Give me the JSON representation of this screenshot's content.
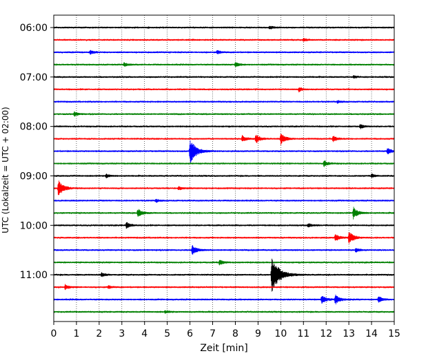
{
  "chart_data": {
    "type": "line",
    "title": "",
    "xlabel": "Zeit  [min]",
    "ylabel": "UTC (Lokalzeit = UTC + 02:00)",
    "xlim": [
      0,
      15
    ],
    "x_ticks": [
      "0",
      "1",
      "2",
      "3",
      "4",
      "5",
      "6",
      "7",
      "8",
      "9",
      "10",
      "11",
      "12",
      "13",
      "14",
      "15"
    ],
    "y_ticks": [
      "06:00",
      "07:00",
      "08:00",
      "09:00",
      "10:00",
      "11:00"
    ],
    "grid": "vertical-dotted",
    "trace_colors": [
      "#000000",
      "#ff0000",
      "#0000ff",
      "#008000"
    ],
    "traces": [
      {
        "start": "06:00",
        "events": [
          {
            "t": 9.5,
            "amp": 0.25
          }
        ]
      },
      {
        "start": "06:15",
        "events": [
          {
            "t": 11.0,
            "amp": 0.2
          }
        ]
      },
      {
        "start": "06:30",
        "events": [
          {
            "t": 1.6,
            "amp": 0.35
          },
          {
            "t": 7.2,
            "amp": 0.3
          }
        ]
      },
      {
        "start": "06:45",
        "events": [
          {
            "t": 3.1,
            "amp": 0.3
          },
          {
            "t": 8.0,
            "amp": 0.4
          }
        ]
      },
      {
        "start": "07:00",
        "events": [
          {
            "t": 13.2,
            "amp": 0.2
          }
        ]
      },
      {
        "start": "07:15",
        "events": [
          {
            "t": 10.8,
            "amp": 0.35
          }
        ]
      },
      {
        "start": "07:30",
        "events": [
          {
            "t": 12.5,
            "amp": 0.2
          }
        ]
      },
      {
        "start": "07:45",
        "events": [
          {
            "t": 0.9,
            "amp": 0.35
          }
        ]
      },
      {
        "start": "08:00",
        "events": [
          {
            "t": 13.5,
            "amp": 0.35
          }
        ]
      },
      {
        "start": "08:15",
        "events": [
          {
            "t": 8.3,
            "amp": 0.5
          },
          {
            "t": 8.9,
            "amp": 0.7
          },
          {
            "t": 10.0,
            "amp": 0.9
          },
          {
            "t": 12.3,
            "amp": 0.5
          }
        ]
      },
      {
        "start": "08:30",
        "events": [
          {
            "t": 6.0,
            "amp": 2.0
          },
          {
            "t": 14.7,
            "amp": 0.5
          }
        ]
      },
      {
        "start": "08:45",
        "events": [
          {
            "t": 11.9,
            "amp": 0.5
          }
        ]
      },
      {
        "start": "09:00",
        "events": [
          {
            "t": 2.3,
            "amp": 0.3
          },
          {
            "t": 14.0,
            "amp": 0.3
          }
        ]
      },
      {
        "start": "09:15",
        "events": [
          {
            "t": 0.2,
            "amp": 1.3
          },
          {
            "t": 5.5,
            "amp": 0.3
          }
        ]
      },
      {
        "start": "09:30",
        "events": [
          {
            "t": 4.5,
            "amp": 0.25
          }
        ]
      },
      {
        "start": "09:45",
        "events": [
          {
            "t": 3.7,
            "amp": 0.7
          },
          {
            "t": 13.2,
            "amp": 0.9
          }
        ]
      },
      {
        "start": "10:00",
        "events": [
          {
            "t": 3.2,
            "amp": 0.5
          },
          {
            "t": 11.2,
            "amp": 0.3
          }
        ]
      },
      {
        "start": "10:15",
        "events": [
          {
            "t": 12.4,
            "amp": 0.6
          },
          {
            "t": 13.0,
            "amp": 1.0
          }
        ]
      },
      {
        "start": "10:30",
        "events": [
          {
            "t": 6.1,
            "amp": 0.8
          },
          {
            "t": 13.3,
            "amp": 0.35
          }
        ]
      },
      {
        "start": "10:45",
        "events": [
          {
            "t": 7.3,
            "amp": 0.4
          }
        ]
      },
      {
        "start": "11:00",
        "events": [
          {
            "t": 2.1,
            "amp": 0.35
          },
          {
            "t": 9.6,
            "amp": 3.0
          }
        ]
      },
      {
        "start": "11:15",
        "events": [
          {
            "t": 0.5,
            "amp": 0.4
          },
          {
            "t": 2.4,
            "amp": 0.25
          }
        ]
      },
      {
        "start": "11:30",
        "events": [
          {
            "t": 11.8,
            "amp": 0.7
          },
          {
            "t": 12.4,
            "amp": 0.8
          },
          {
            "t": 14.3,
            "amp": 0.5
          }
        ]
      },
      {
        "start": "11:45",
        "events": [
          {
            "t": 4.9,
            "amp": 0.25
          }
        ]
      }
    ]
  }
}
